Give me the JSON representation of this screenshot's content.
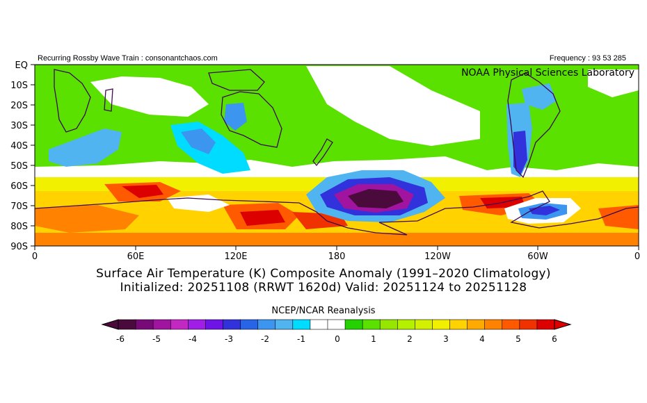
{
  "header": {
    "left": "Recurring Rossby Wave Train : consonantchaos.com",
    "right": "Frequency : 93 53 285"
  },
  "map": {
    "credit": "NOAA Physical Sciences Laboratory",
    "lat_labels": [
      "EQ",
      "10S",
      "20S",
      "30S",
      "40S",
      "50S",
      "60S",
      "70S",
      "80S",
      "90S"
    ],
    "lon_labels": [
      "0",
      "60E",
      "120E",
      "180",
      "120W",
      "60W",
      "0"
    ],
    "palette": [
      "#4b0a3c",
      "#780a78",
      "#a014a0",
      "#c328c3",
      "#a01ee6",
      "#6e14e6",
      "#3232dc",
      "#2864e6",
      "#3c96f0",
      "#50b4f0",
      "#00dcff",
      "#ffffff",
      "#ffffff",
      "#23d200",
      "#5ae100",
      "#96e600",
      "#b4f000",
      "#d2f000",
      "#f0f000",
      "#ffd200",
      "#ffaa00",
      "#ff8200",
      "#ff5a00",
      "#f03200",
      "#dc0000"
    ]
  },
  "title": {
    "line1": "Surface Air Temperature (K) Composite Anomaly (1991–2020 Climatology)",
    "line2": "Initialized: 20251108 (RRWT 1620d) Valid: 20251124 to 20251128"
  },
  "colorbar": {
    "source": "NCEP/NCAR Reanalysis",
    "ticks": [
      "-6",
      "-5",
      "-4",
      "-3",
      "-2",
      "-1",
      "0",
      "1",
      "2",
      "3",
      "4",
      "5",
      "6"
    ]
  }
}
